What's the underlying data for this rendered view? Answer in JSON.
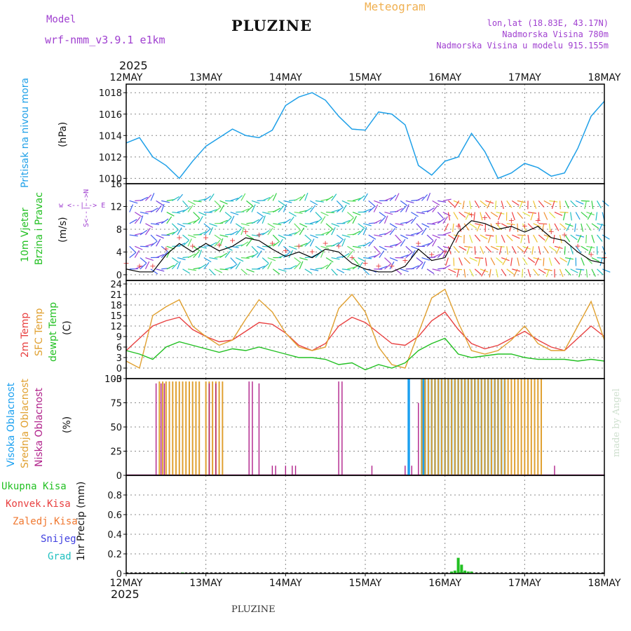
{
  "header": {
    "model_label": "Model",
    "model_name": "wrf-nmm_v3.9.1  e1km",
    "station": "PLUZINE",
    "meteogram": "Meteogram",
    "lonlat": "lon,lat (18.83E, 43.17N)",
    "altitude": "Nadmorska Visina 780m",
    "model_altitude": "Nadmorska Visina u modelu 915.155m",
    "year_top": "2025",
    "year_bottom": "2025",
    "footer_station": "PLUZINE",
    "credit": "made by Angel"
  },
  "colors": {
    "pressure": "#1fa0e8",
    "t2m": "#e84040",
    "sfc": "#e0a030",
    "dew": "#22c022",
    "high_cloud": "#1aa0f0",
    "mid_cloud": "#e0a030",
    "low_cloud": "#b0208a",
    "wind_label": "#22c022",
    "wind_speed": "#e84040",
    "precip": "#22c022",
    "purple": "#a040d0"
  },
  "labels": {
    "pressure_name": "Pritisak na nivou mora",
    "pressure_unit": "(hPa)",
    "wind_name1": "10m Vjetar",
    "wind_name2": "Brzina i Pravac",
    "wind_unit": "(m/s)",
    "compass": "w  <--|--> E",
    "compass2": "S<--|-->N",
    "temp_t2m": "2m Temp",
    "temp_sfc": "SFC Temp",
    "temp_dew": "dewpt Temp",
    "temp_unit": "(C)",
    "cloud_high": "Visoka Oblacnost",
    "cloud_mid": "Srednja Oblacnost",
    "cloud_low": "Niska  Oblacnost",
    "cloud_unit": "(%)",
    "precip_total": "Ukupna  Kisa",
    "precip_conv": "Konvek.Kisa",
    "precip_frozen": "Zaledj.Kisa",
    "precip_snow": "Snijeg",
    "precip_grad": "Grad",
    "precip_unit": "1hr Precip (mm)"
  },
  "chart_data": [
    {
      "type": "line",
      "panel": "pressure",
      "x_hours": [
        0,
        4,
        8,
        12,
        16,
        20,
        24,
        28,
        32,
        36,
        40,
        44,
        48,
        52,
        56,
        60,
        64,
        68,
        72,
        76,
        80,
        84,
        88,
        92,
        96,
        100,
        104,
        108,
        112,
        116,
        120,
        124,
        128,
        132,
        136,
        140,
        144
      ],
      "values": [
        1013.3,
        1013.8,
        1012.0,
        1011.2,
        1010.0,
        1011.6,
        1013.0,
        1013.8,
        1014.6,
        1014.0,
        1013.8,
        1014.5,
        1016.8,
        1017.6,
        1018.0,
        1017.3,
        1015.8,
        1014.6,
        1014.5,
        1016.2,
        1016.0,
        1015.0,
        1011.2,
        1010.3,
        1011.6,
        1012.0,
        1014.2,
        1012.5,
        1010.0,
        1010.5,
        1011.4,
        1011.0,
        1010.2,
        1010.5,
        1012.8,
        1015.8,
        1017.2
      ],
      "ylim": [
        1009.5,
        1018.8
      ],
      "yticks": [
        1010,
        1012,
        1014,
        1016,
        1018
      ]
    },
    {
      "type": "line",
      "panel": "wind",
      "x_hours": [
        0,
        4,
        8,
        12,
        16,
        20,
        24,
        28,
        32,
        36,
        40,
        44,
        48,
        52,
        56,
        60,
        64,
        68,
        72,
        76,
        80,
        84,
        88,
        92,
        96,
        100,
        104,
        108,
        112,
        116,
        120,
        124,
        128,
        132,
        136,
        140,
        144
      ],
      "values": [
        1.0,
        0.5,
        0.5,
        3.5,
        5.5,
        4.0,
        5.5,
        4.2,
        5.0,
        6.5,
        6.0,
        4.5,
        3.2,
        4.0,
        3.0,
        4.5,
        4.0,
        2.0,
        1.0,
        0.5,
        0.5,
        1.5,
        4.5,
        2.5,
        3.0,
        7.5,
        9.5,
        9.0,
        8.0,
        8.5,
        7.5,
        8.5,
        6.5,
        6.0,
        4.0,
        2.5,
        2.0
      ],
      "ylim": [
        -1,
        16
      ],
      "yticks": [
        0,
        4,
        8,
        12,
        16
      ]
    },
    {
      "type": "line",
      "panel": "temperature",
      "x_hours": [
        0,
        4,
        8,
        12,
        16,
        20,
        24,
        28,
        32,
        36,
        40,
        44,
        48,
        52,
        56,
        60,
        64,
        68,
        72,
        76,
        80,
        84,
        88,
        92,
        96,
        100,
        104,
        108,
        112,
        116,
        120,
        124,
        128,
        132,
        136,
        140,
        144
      ],
      "ylim": [
        -3,
        25
      ],
      "yticks": [
        -3,
        0,
        3,
        6,
        9,
        12,
        15,
        18,
        21,
        24
      ],
      "series": [
        {
          "name": "2m Temp",
          "values": [
            5.0,
            8.5,
            12.0,
            13.5,
            14.5,
            11.0,
            9.0,
            7.5,
            8.0,
            10.5,
            13.0,
            12.5,
            10.0,
            6.5,
            5.0,
            7.0,
            12.0,
            14.5,
            13.0,
            10.0,
            7.0,
            6.5,
            9.0,
            13.5,
            16.0,
            11.0,
            7.0,
            5.5,
            6.5,
            8.5,
            10.5,
            8.0,
            6.0,
            5.0,
            8.5,
            12.0,
            9.0
          ]
        },
        {
          "name": "SFC Temp",
          "values": [
            2.0,
            0.0,
            15.0,
            17.5,
            19.5,
            12.0,
            9.0,
            6.5,
            8.0,
            14.0,
            19.5,
            16.0,
            10.0,
            6.0,
            5.0,
            6.0,
            17.0,
            21.0,
            16.0,
            6.0,
            1.0,
            0.0,
            10.0,
            20.0,
            22.5,
            13.0,
            5.0,
            4.0,
            5.0,
            8.0,
            12.0,
            7.0,
            5.0,
            5.0,
            12.0,
            19.0,
            8.0
          ]
        },
        {
          "name": "dewpt Temp",
          "values": [
            5.0,
            4.0,
            2.5,
            6.0,
            7.5,
            6.5,
            5.5,
            4.5,
            5.5,
            5.0,
            6.0,
            5.0,
            4.0,
            3.0,
            3.0,
            2.5,
            1.0,
            1.5,
            -0.5,
            1.0,
            0.0,
            1.5,
            5.0,
            7.0,
            8.5,
            4.0,
            3.0,
            3.5,
            4.0,
            4.0,
            3.0,
            2.5,
            2.5,
            2.5,
            2.0,
            2.5,
            2.0
          ]
        }
      ]
    },
    {
      "type": "bar",
      "panel": "clouds",
      "ylim": [
        0,
        100
      ],
      "yticks": [
        0,
        25,
        50,
        75,
        100
      ],
      "series": [
        {
          "name": "Visoka Oblacnost",
          "bars": [
            [
              85,
              100
            ],
            [
              85.2,
              100
            ],
            [
              89,
              100
            ],
            [
              89.5,
              100
            ],
            [
              90,
              100
            ],
            [
              91,
              100
            ],
            [
              92,
              100
            ],
            [
              93,
              100
            ],
            [
              94,
              100
            ],
            [
              95,
              100
            ],
            [
              96,
              100
            ],
            [
              97,
              100
            ],
            [
              98,
              100
            ],
            [
              99,
              100
            ],
            [
              100,
              100
            ],
            [
              101,
              100
            ],
            [
              102,
              100
            ],
            [
              103,
              100
            ],
            [
              104,
              100
            ],
            [
              105,
              100
            ],
            [
              106,
              100
            ],
            [
              107,
              100
            ],
            [
              108,
              100
            ],
            [
              109,
              100
            ],
            [
              110,
              100
            ],
            [
              111,
              100
            ],
            [
              112,
              100
            ],
            [
              113,
              100
            ],
            [
              114,
              100
            ]
          ]
        },
        {
          "name": "Srednja Oblacnost",
          "bars": [
            [
              10,
              97
            ],
            [
              11,
              97
            ],
            [
              12,
              97
            ],
            [
              13,
              97
            ],
            [
              14,
              97
            ],
            [
              15,
              97
            ],
            [
              16,
              97
            ],
            [
              17,
              97
            ],
            [
              18,
              97
            ],
            [
              19,
              97
            ],
            [
              20,
              97
            ],
            [
              21,
              97
            ],
            [
              22,
              97
            ],
            [
              24,
              97
            ],
            [
              25,
              97
            ],
            [
              26,
              97
            ],
            [
              27,
              97
            ],
            [
              28,
              97
            ],
            [
              29,
              97
            ],
            [
              89,
              100
            ],
            [
              90,
              100
            ],
            [
              91,
              100
            ],
            [
              92,
              100
            ],
            [
              93,
              100
            ],
            [
              94,
              100
            ],
            [
              95,
              100
            ],
            [
              96,
              100
            ],
            [
              97,
              100
            ],
            [
              98,
              100
            ],
            [
              99,
              100
            ],
            [
              100,
              100
            ],
            [
              101,
              100
            ],
            [
              102,
              100
            ],
            [
              103,
              100
            ],
            [
              104,
              100
            ],
            [
              105,
              100
            ],
            [
              106,
              100
            ],
            [
              107,
              100
            ],
            [
              108,
              100
            ],
            [
              109,
              100
            ],
            [
              110,
              100
            ],
            [
              111,
              100
            ],
            [
              112,
              100
            ],
            [
              113,
              100
            ],
            [
              114,
              100
            ],
            [
              115,
              100
            ],
            [
              116,
              100
            ],
            [
              117,
              100
            ],
            [
              118,
              100
            ],
            [
              119,
              100
            ],
            [
              120,
              100
            ],
            [
              121,
              100
            ],
            [
              122,
              100
            ],
            [
              123,
              100
            ],
            [
              124,
              100
            ],
            [
              125,
              100
            ]
          ]
        },
        {
          "name": "Niska  Oblacnost",
          "bars": [
            [
              9,
              95
            ],
            [
              10.5,
              95
            ],
            [
              11.5,
              95
            ],
            [
              25,
              95
            ],
            [
              27,
              95
            ],
            [
              37,
              97
            ],
            [
              38,
              97
            ],
            [
              40,
              95
            ],
            [
              44,
              10
            ],
            [
              45,
              10
            ],
            [
              48,
              10
            ],
            [
              50,
              10
            ],
            [
              51,
              10
            ],
            [
              64,
              97
            ],
            [
              65,
              97
            ],
            [
              74,
              10
            ],
            [
              84,
              10
            ],
            [
              86,
              10
            ],
            [
              88,
              75
            ],
            [
              129,
              10
            ]
          ]
        }
      ]
    },
    {
      "type": "bar",
      "panel": "precip",
      "ylim": [
        0,
        1.0
      ],
      "yticks": [
        0,
        0.2,
        0.4,
        0.6,
        0.8
      ],
      "series": [
        {
          "name": "Ukupna  Kisa",
          "bars": [
            [
              17,
              0.01
            ],
            [
              98,
              0.02
            ],
            [
              99,
              0.03
            ],
            [
              100,
              0.16
            ],
            [
              101,
              0.09
            ],
            [
              102,
              0.03
            ],
            [
              103,
              0.02
            ],
            [
              104,
              0.02
            ]
          ]
        },
        {
          "name": "Konvek.Kisa",
          "bars": []
        },
        {
          "name": "Zaledj.Kisa",
          "bars": []
        },
        {
          "name": "Snijeg",
          "bars": []
        },
        {
          "name": "Grad",
          "bars": []
        }
      ]
    }
  ],
  "x_axis": {
    "hours_total": 144,
    "day_labels": [
      "12MAY",
      "13MAY",
      "14MAY",
      "15MAY",
      "16MAY",
      "17MAY",
      "18MAY"
    ]
  }
}
